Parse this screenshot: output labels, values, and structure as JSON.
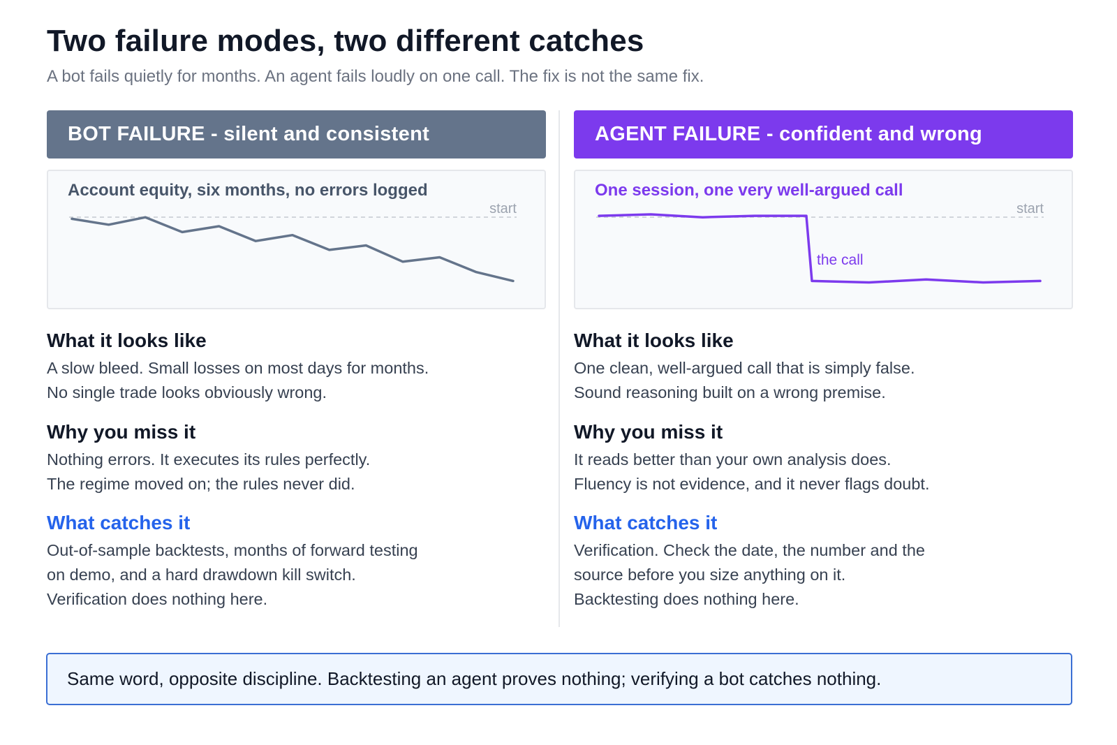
{
  "title": "Two failure modes, two different catches",
  "subtitle": "A bot fails quietly for months. An agent fails loudly on one call. The fix is not the same fix.",
  "bot": {
    "header": "BOT FAILURE - silent and consistent",
    "chart": {
      "title": "Account equity, six months, no errors logged",
      "baseline_label": "start",
      "color": "#64748b",
      "values": [
        0.97,
        0.93,
        0.98,
        0.88,
        0.92,
        0.82,
        0.86,
        0.76,
        0.79,
        0.68,
        0.71,
        0.61,
        0.55
      ]
    },
    "sections": [
      {
        "heading": "What it looks like",
        "lines": [
          "A slow bleed. Small losses on most days for months.",
          "No single trade looks obviously wrong."
        ]
      },
      {
        "heading": "Why you miss it",
        "lines": [
          "Nothing errors. It executes its rules perfectly.",
          "The regime moved on; the rules never did."
        ]
      },
      {
        "heading": "What catches it",
        "lines": [
          "Out-of-sample backtests, months of forward testing",
          "on demo, and a hard drawdown kill switch.",
          "Verification does nothing here."
        ]
      }
    ]
  },
  "agent": {
    "header": "AGENT FAILURE - confident and wrong",
    "chart": {
      "title": "One session, one very well-argued call",
      "baseline_label": "start",
      "annotation": "the call",
      "color": "#7c3aed",
      "values": [
        0.99,
        1.0,
        0.98,
        0.99,
        0.99,
        0.55,
        0.54,
        0.56,
        0.54,
        0.55
      ]
    },
    "sections": [
      {
        "heading": "What it looks like",
        "lines": [
          "One clean, well-argued call that is simply false.",
          "Sound reasoning built on a wrong premise."
        ]
      },
      {
        "heading": "Why you miss it",
        "lines": [
          "It reads better than your own analysis does.",
          "Fluency is not evidence, and it never flags doubt."
        ]
      },
      {
        "heading": "What catches it",
        "lines": [
          "Verification. Check the date, the number and the",
          "source before you size anything on it.",
          "Backtesting does nothing here."
        ]
      }
    ]
  },
  "footer": "Same word, opposite discipline. Backtesting an agent proves nothing; verifying a bot catches nothing."
}
